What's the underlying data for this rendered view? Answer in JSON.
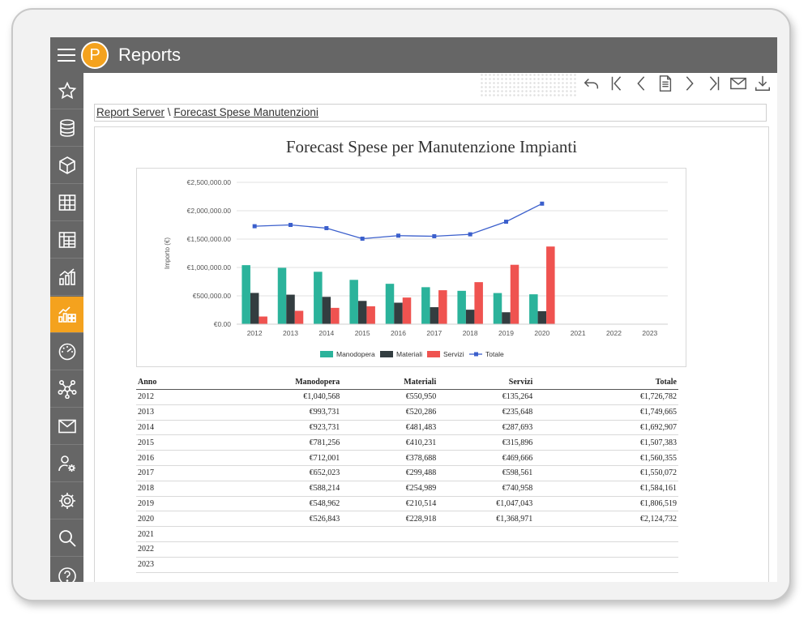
{
  "app": {
    "title": "Reports",
    "logo_letter": "P"
  },
  "sidebar": {
    "items": [
      {
        "name": "favorites",
        "icon": "star-icon"
      },
      {
        "name": "data-sources",
        "icon": "database-icon"
      },
      {
        "name": "cubes",
        "icon": "cube-icon"
      },
      {
        "name": "tables",
        "icon": "table-icon"
      },
      {
        "name": "pivot",
        "icon": "pivot-table-icon"
      },
      {
        "name": "charts",
        "icon": "bar-chart-icon"
      },
      {
        "name": "reports",
        "icon": "report-chart-icon",
        "active": true
      },
      {
        "name": "dashboards",
        "icon": "gauge-icon"
      },
      {
        "name": "network",
        "icon": "network-icon"
      },
      {
        "name": "mail",
        "icon": "mail-icon"
      },
      {
        "name": "users",
        "icon": "user-gear-icon"
      },
      {
        "name": "settings",
        "icon": "gear-icon"
      },
      {
        "name": "search",
        "icon": "search-icon"
      },
      {
        "name": "help",
        "icon": "help-icon"
      }
    ]
  },
  "toolbar": {
    "buttons": [
      "undo-icon",
      "first-page-icon",
      "prev-page-icon",
      "page-icon",
      "next-page-icon",
      "last-page-icon",
      "mail-icon",
      "download-icon"
    ]
  },
  "breadcrumb": {
    "root": "Report Server",
    "separator": " \\ ",
    "current": "Forecast Spese Manutenzioni"
  },
  "report": {
    "title": "Forecast Spese per Manutenzione Impianti"
  },
  "colors": {
    "manodopera": "#2bb39b",
    "materiali": "#333d40",
    "servizi": "#ef5350",
    "totale": "#3b5fcc",
    "accent": "#f4a21e",
    "bar": "#666666"
  },
  "chart_data": {
    "type": "bar",
    "title": "",
    "categories": [
      "2012",
      "2013",
      "2014",
      "2015",
      "2016",
      "2017",
      "2018",
      "2019",
      "2020",
      "2021",
      "2022",
      "2023"
    ],
    "series": [
      {
        "name": "Manodopera",
        "type": "bar",
        "values": [
          1040568,
          993731,
          923731,
          781256,
          712001,
          652023,
          588214,
          548962,
          526843,
          null,
          null,
          null
        ]
      },
      {
        "name": "Materiali",
        "type": "bar",
        "values": [
          550950,
          520286,
          481483,
          410231,
          378688,
          299488,
          254989,
          210514,
          228918,
          null,
          null,
          null
        ]
      },
      {
        "name": "Servizi",
        "type": "bar",
        "values": [
          135264,
          235648,
          287693,
          315896,
          469666,
          598561,
          740958,
          1047043,
          1368971,
          null,
          null,
          null
        ]
      },
      {
        "name": "Totale",
        "type": "line",
        "values": [
          1726782,
          1749665,
          1692907,
          1507383,
          1560355,
          1550072,
          1584161,
          1806519,
          2124732,
          null,
          null,
          null
        ]
      }
    ],
    "ylabel": "Importo (€)",
    "xlabel": "",
    "ylim": [
      0,
      2500000
    ],
    "yticks": [
      "€0.00",
      "€500,000.00",
      "€1,000,000.00",
      "€1,500,000.00",
      "€2,000,000.00",
      "€2,500,000.00"
    ],
    "grid": true,
    "legend": "bottom"
  },
  "table": {
    "headers": [
      "Anno",
      "Manodopera",
      "Materiali",
      "Servizi",
      "Totale"
    ],
    "rows": [
      [
        "2012",
        "€1,040,568",
        "€550,950",
        "€135,264",
        "€1,726,782"
      ],
      [
        "2013",
        "€993,731",
        "€520,286",
        "€235,648",
        "€1,749,665"
      ],
      [
        "2014",
        "€923,731",
        "€481,483",
        "€287,693",
        "€1,692,907"
      ],
      [
        "2015",
        "€781,256",
        "€410,231",
        "€315,896",
        "€1,507,383"
      ],
      [
        "2016",
        "€712,001",
        "€378,688",
        "€469,666",
        "€1,560,355"
      ],
      [
        "2017",
        "€652,023",
        "€299,488",
        "€598,561",
        "€1,550,072"
      ],
      [
        "2018",
        "€588,214",
        "€254,989",
        "€740,958",
        "€1,584,161"
      ],
      [
        "2019",
        "€548,962",
        "€210,514",
        "€1,047,043",
        "€1,806,519"
      ],
      [
        "2020",
        "€526,843",
        "€228,918",
        "€1,368,971",
        "€2,124,732"
      ],
      [
        "2021",
        "",
        "",
        "",
        ""
      ],
      [
        "2022",
        "",
        "",
        "",
        ""
      ],
      [
        "2023",
        "",
        "",
        "",
        ""
      ]
    ]
  }
}
